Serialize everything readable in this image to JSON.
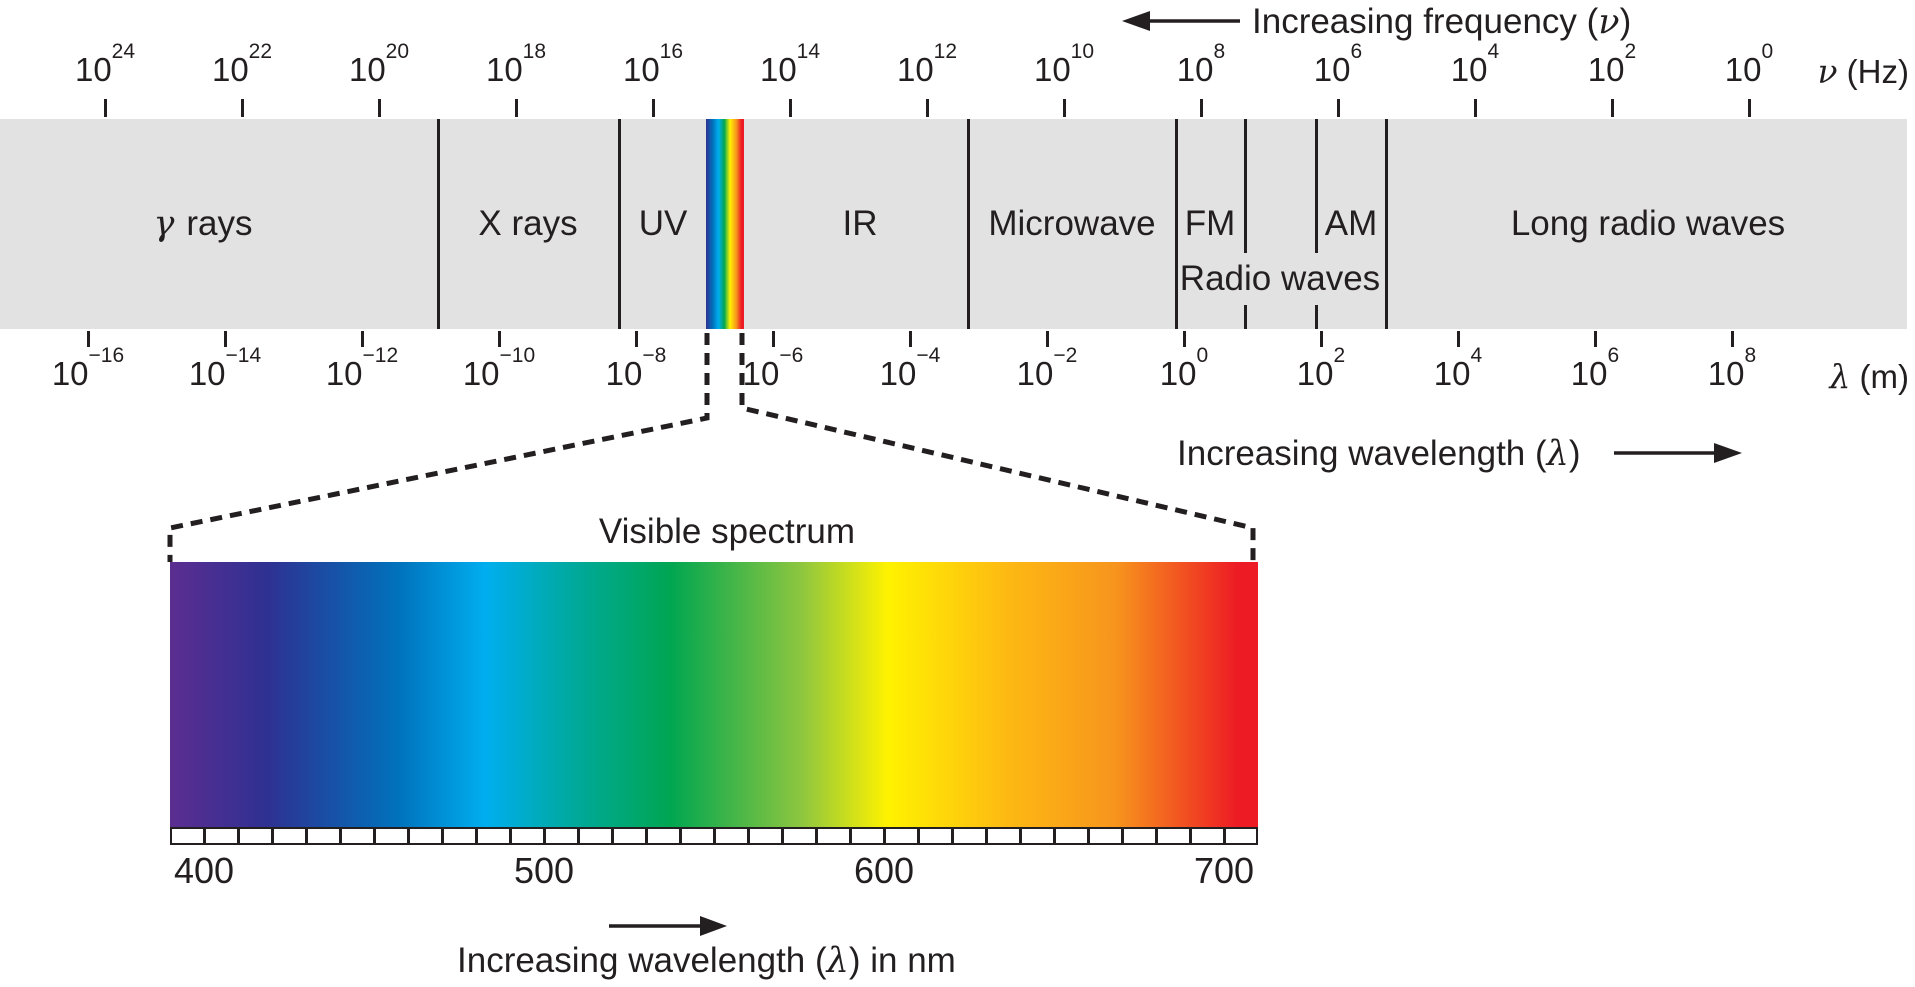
{
  "colors": {
    "ink": "#231f20",
    "band_gray": "#e2e2e2"
  },
  "top_arrow": {
    "prefix": "Increasing frequency (",
    "symbol": "ν",
    "suffix": ")"
  },
  "freq_axis": {
    "base": "10",
    "exponents": [
      "24",
      "22",
      "20",
      "18",
      "16",
      "14",
      "12",
      "10",
      "8",
      "6",
      "4",
      "2",
      "0"
    ],
    "unit_symbol": "ν",
    "unit_suffix": " (Hz)"
  },
  "band": {
    "regions": [
      {
        "name": "gamma-rays",
        "symbol": "γ",
        "label": "rays"
      },
      {
        "name": "x-rays",
        "label": "X rays"
      },
      {
        "name": "uv",
        "label": "UV"
      },
      {
        "name": "ir",
        "label": "IR"
      },
      {
        "name": "microwave",
        "label": "Microwave"
      },
      {
        "name": "fm",
        "label": "FM"
      },
      {
        "name": "am",
        "label": "AM"
      },
      {
        "name": "long-radio-waves",
        "label": "Long radio waves"
      },
      {
        "name": "radio-waves",
        "label": "Radio waves"
      }
    ],
    "rainbow_stops": [
      {
        "c": "#2e3192",
        "p": 0
      },
      {
        "c": "#0072bc",
        "p": 18
      },
      {
        "c": "#00aeef",
        "p": 33
      },
      {
        "c": "#00a651",
        "p": 48
      },
      {
        "c": "#fff200",
        "p": 63
      },
      {
        "c": "#f7941d",
        "p": 80
      },
      {
        "c": "#ed1c24",
        "p": 93
      },
      {
        "c": "#ed1c24",
        "p": 100
      }
    ]
  },
  "wavelength_axis": {
    "base": "10",
    "exponents": [
      "−16",
      "−14",
      "−12",
      "−10",
      "−8",
      "−6",
      "−4",
      "−2",
      "0",
      "2",
      "4",
      "6",
      "8"
    ],
    "unit_symbol": "λ",
    "unit_suffix": " (m)"
  },
  "mid_arrow": {
    "prefix": "Increasing wavelength (",
    "symbol": "λ",
    "suffix": ")"
  },
  "visible": {
    "title": "Visible spectrum",
    "ticks": [
      "400",
      "500",
      "600",
      "700"
    ],
    "gradient_stops": [
      {
        "c": "#5c2d91",
        "p": 0
      },
      {
        "c": "#2e3192",
        "p": 9
      },
      {
        "c": "#0072bc",
        "p": 21
      },
      {
        "c": "#00aeef",
        "p": 29
      },
      {
        "c": "#00a99d",
        "p": 37
      },
      {
        "c": "#00a651",
        "p": 46
      },
      {
        "c": "#8dc63f",
        "p": 58
      },
      {
        "c": "#fff200",
        "p": 66
      },
      {
        "c": "#fdb913",
        "p": 77
      },
      {
        "c": "#f7941d",
        "p": 87
      },
      {
        "c": "#ed1c24",
        "p": 98
      },
      {
        "c": "#ed1c24",
        "p": 100
      }
    ]
  },
  "bottom_arrow": {
    "prefix": "Increasing wavelength (",
    "symbol": "λ",
    "suffix": ") in nm"
  }
}
